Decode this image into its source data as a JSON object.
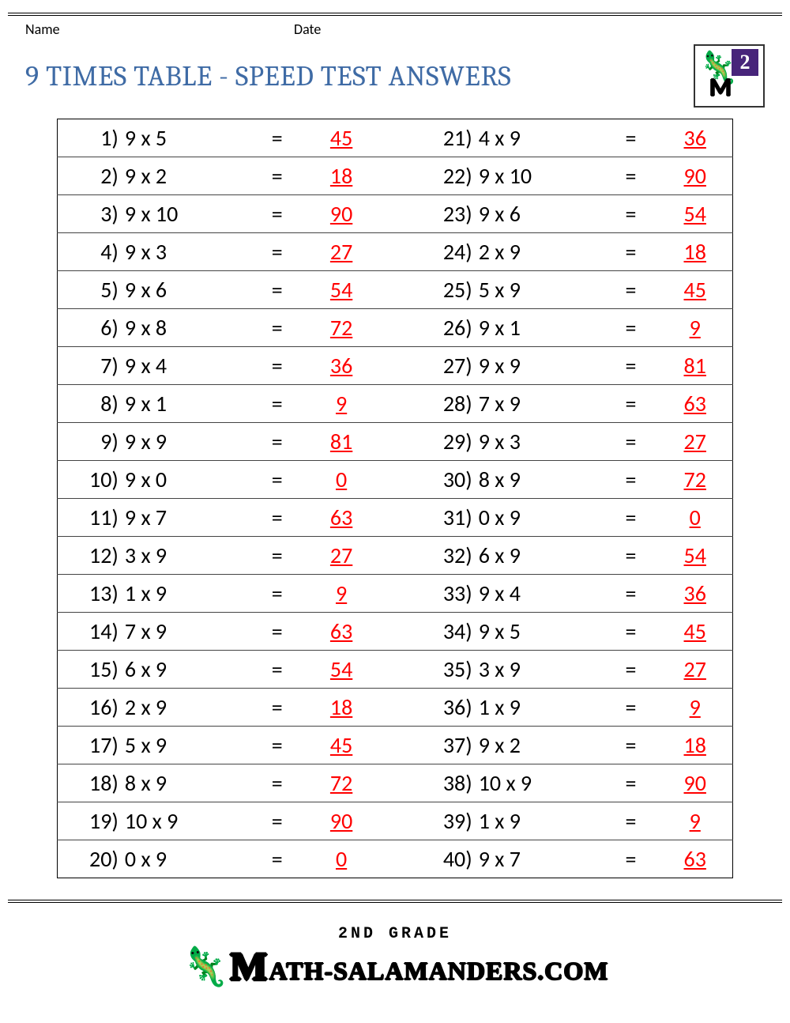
{
  "meta": {
    "name_label": "Name",
    "date_label": "Date"
  },
  "title": {
    "text": "9 TIMES TABLE - SPEED TEST ANSWERS",
    "color": "#3f6ba5",
    "fontsize": 36
  },
  "logo": {
    "grade_number": "2"
  },
  "worksheet": {
    "type": "table",
    "answer_color": "#ff0000",
    "equals_symbol": "=",
    "body_fontsize": 28,
    "left": [
      {
        "n": "1)",
        "q": "9 x 5",
        "a": "45"
      },
      {
        "n": "2)",
        "q": "9 x 2",
        "a": "18"
      },
      {
        "n": "3)",
        "q": "9 x 10",
        "a": "90"
      },
      {
        "n": "4)",
        "q": "9 x 3",
        "a": "27"
      },
      {
        "n": "5)",
        "q": "9 x 6",
        "a": "54"
      },
      {
        "n": "6)",
        "q": "9 x 8",
        "a": "72"
      },
      {
        "n": "7)",
        "q": "9 x 4",
        "a": "36"
      },
      {
        "n": "8)",
        "q": "9 x 1",
        "a": "9"
      },
      {
        "n": "9)",
        "q": "9 x 9",
        "a": "81"
      },
      {
        "n": "10)",
        "q": "9 x 0",
        "a": "0"
      },
      {
        "n": "11)",
        "q": "9 x 7",
        "a": "63"
      },
      {
        "n": "12)",
        "q": "3 x 9",
        "a": "27"
      },
      {
        "n": "13)",
        "q": "1 x 9",
        "a": "9"
      },
      {
        "n": "14)",
        "q": "7 x 9",
        "a": "63"
      },
      {
        "n": "15)",
        "q": "6 x 9",
        "a": "54"
      },
      {
        "n": "16)",
        "q": "2 x 9",
        "a": "18"
      },
      {
        "n": "17)",
        "q": "5 x 9",
        "a": "45"
      },
      {
        "n": "18)",
        "q": "8 x 9",
        "a": "72"
      },
      {
        "n": "19)",
        "q": "10 x 9",
        "a": "90"
      },
      {
        "n": "20)",
        "q": "0 x 9",
        "a": "0"
      }
    ],
    "right": [
      {
        "n": "21)",
        "q": "4 x 9",
        "a": "36"
      },
      {
        "n": "22)",
        "q": "9 x 10",
        "a": "90"
      },
      {
        "n": "23)",
        "q": "9 x 6",
        "a": "54"
      },
      {
        "n": "24)",
        "q": "2 x 9",
        "a": "18"
      },
      {
        "n": "25)",
        "q": "5 x 9",
        "a": "45"
      },
      {
        "n": "26)",
        "q": "9 x 1",
        "a": "9"
      },
      {
        "n": "27)",
        "q": "9 x 9",
        "a": "81"
      },
      {
        "n": "28)",
        "q": "7 x 9",
        "a": "63"
      },
      {
        "n": "29)",
        "q": "9 x 3",
        "a": "27"
      },
      {
        "n": "30)",
        "q": "8 x 9",
        "a": "72"
      },
      {
        "n": "31)",
        "q": "0 x 9",
        "a": "0"
      },
      {
        "n": "32)",
        "q": "6 x 9",
        "a": "54"
      },
      {
        "n": "33)",
        "q": "9 x 4",
        "a": "36"
      },
      {
        "n": "34)",
        "q": "9 x 5",
        "a": "45"
      },
      {
        "n": "35)",
        "q": "3 x 9",
        "a": "27"
      },
      {
        "n": "36)",
        "q": "1 x 9",
        "a": "9"
      },
      {
        "n": "37)",
        "q": "9 x 2",
        "a": "18"
      },
      {
        "n": "38)",
        "q": "10 x 9",
        "a": "90"
      },
      {
        "n": "39)",
        "q": "1 x 9",
        "a": "9"
      },
      {
        "n": "40)",
        "q": "9 x 7",
        "a": "63"
      }
    ]
  },
  "footer": {
    "grade_text": "2ND GRADE",
    "site_text": "ATH-SALAMANDERS.COM"
  }
}
